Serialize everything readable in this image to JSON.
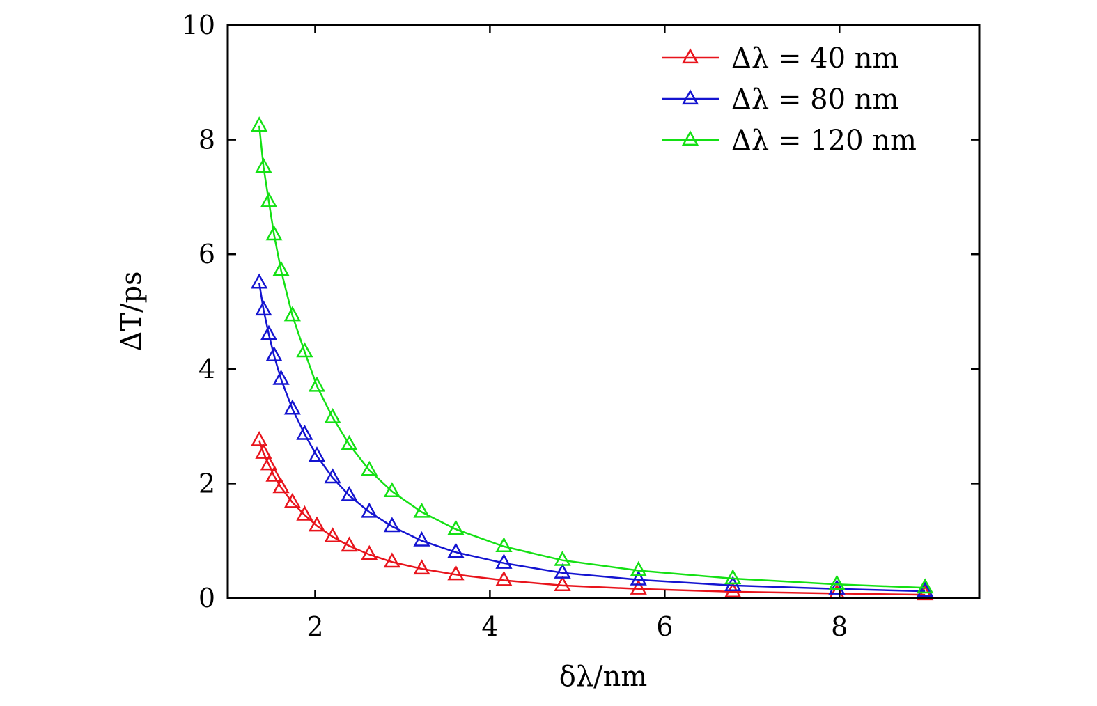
{
  "chart_data": {
    "type": "line",
    "title": "",
    "xlabel": "δλ/nm",
    "ylabel": "ΔT/ps",
    "xlim": [
      1.0,
      9.6
    ],
    "ylim": [
      0,
      10
    ],
    "xticks": [
      2,
      4,
      6,
      8
    ],
    "yticks": [
      0,
      2,
      4,
      6,
      8,
      10
    ],
    "x_tick_labels": [
      "2",
      "4",
      "6",
      "8"
    ],
    "y_tick_labels": [
      "0",
      "2",
      "4",
      "6",
      "8",
      "10"
    ],
    "grid": false,
    "legend_position": "top-right",
    "x": [
      1.36,
      1.41,
      1.47,
      1.53,
      1.61,
      1.74,
      1.88,
      2.02,
      2.2,
      2.39,
      2.62,
      2.88,
      3.22,
      3.61,
      4.16,
      4.83,
      5.7,
      6.78,
      7.97,
      8.98
    ],
    "series": [
      {
        "name": "Δλ = 40 nm",
        "color": "#e8141c",
        "marker": "triangle-open",
        "values": [
          2.75,
          2.53,
          2.33,
          2.13,
          1.93,
          1.67,
          1.45,
          1.26,
          1.07,
          0.91,
          0.76,
          0.63,
          0.51,
          0.41,
          0.31,
          0.22,
          0.16,
          0.11,
          0.08,
          0.06
        ]
      },
      {
        "name": "Δλ = 80 nm",
        "color": "#1414d0",
        "marker": "triangle-open",
        "values": [
          5.5,
          5.03,
          4.6,
          4.23,
          3.82,
          3.3,
          2.86,
          2.48,
          2.1,
          1.79,
          1.5,
          1.25,
          1.0,
          0.8,
          0.61,
          0.44,
          0.32,
          0.22,
          0.16,
          0.12
        ]
      },
      {
        "name": "Δλ = 120 nm",
        "color": "#14e014",
        "marker": "triangle-open",
        "values": [
          8.24,
          7.52,
          6.92,
          6.34,
          5.72,
          4.93,
          4.3,
          3.7,
          3.15,
          2.68,
          2.23,
          1.86,
          1.5,
          1.2,
          0.9,
          0.66,
          0.48,
          0.34,
          0.24,
          0.18
        ]
      }
    ]
  }
}
